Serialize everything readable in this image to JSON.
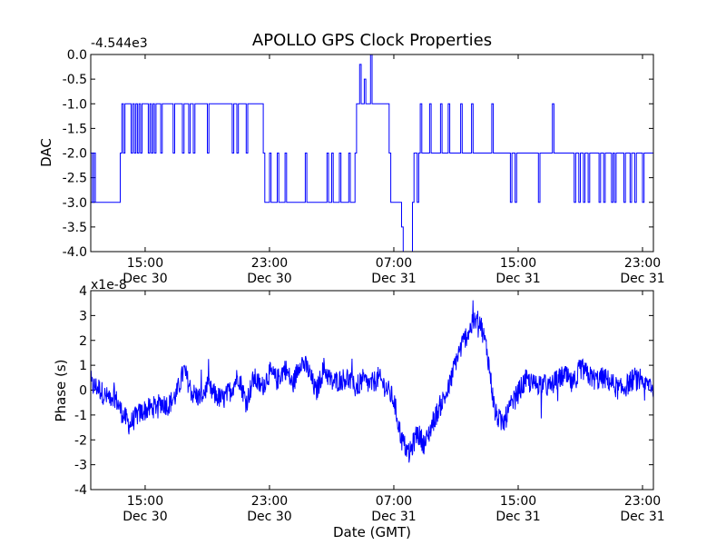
{
  "figure": {
    "title": "APOLLO GPS Clock Properties"
  },
  "chart_data": [
    {
      "type": "line",
      "ylabel": "DAC",
      "offset_label": "-4.544e3",
      "ylim": [
        -4.0,
        0.0
      ],
      "yticks": [
        "0.0",
        "-0.5",
        "-1.0",
        "-1.5",
        "-2.0",
        "-2.5",
        "-3.0",
        "-3.5",
        "-4.0"
      ],
      "yticks_values": [
        0.0,
        -0.5,
        -1.0,
        -1.5,
        -2.0,
        -2.5,
        -3.0,
        -3.5,
        -4.0
      ],
      "xlim_hours": [
        11.5,
        47.7
      ],
      "xticks": [
        {
          "hour": 15,
          "time": "15:00",
          "date": "Dec 30"
        },
        {
          "hour": 23,
          "time": "23:00",
          "date": "Dec 30"
        },
        {
          "hour": 31,
          "time": "07:00",
          "date": "Dec 31"
        },
        {
          "hour": 39,
          "time": "15:00",
          "date": "Dec 31"
        },
        {
          "hour": 47,
          "time": "23:00",
          "date": "Dec 31"
        }
      ],
      "series": [
        {
          "color": "#0000ff",
          "x": [
            11.5,
            11.6,
            11.7,
            11.8,
            13.4,
            13.5,
            13.6,
            13.7,
            14.1,
            14.2,
            14.3,
            14.4,
            14.5,
            14.6,
            14.7,
            14.8,
            15.2,
            15.3,
            15.4,
            15.5,
            15.6,
            15.7,
            16.0,
            16.1,
            16.8,
            16.9,
            17.4,
            17.5,
            17.8,
            17.9,
            18.1,
            18.2,
            19.0,
            19.1,
            20.6,
            20.7,
            20.9,
            21.0,
            21.5,
            21.6,
            22.6,
            22.7,
            23.0,
            23.1,
            23.5,
            23.6,
            24.0,
            24.1,
            25.3,
            25.4,
            26.7,
            26.8,
            27.0,
            27.1,
            27.5,
            27.6,
            28.1,
            28.2,
            28.5,
            28.6,
            28.8,
            28.9,
            29.1,
            29.2,
            29.5,
            29.6,
            30.7,
            30.8,
            31.5,
            31.6,
            32.2,
            32.3,
            32.5,
            32.6,
            32.7,
            32.8,
            33.3,
            33.4,
            34.0,
            34.1,
            34.5,
            34.6,
            35.3,
            35.4,
            36.0,
            36.1,
            37.3,
            37.4,
            38.5,
            38.6,
            38.8,
            38.9,
            40.3,
            40.4,
            41.2,
            41.3,
            42.6,
            42.7,
            42.9,
            43.0,
            43.2,
            43.3,
            43.5,
            43.6,
            44.2,
            44.3,
            44.5,
            44.6,
            45.0,
            45.1,
            45.2,
            45.3,
            45.8,
            45.9,
            46.2,
            46.3,
            46.5,
            46.6,
            47.0,
            47.1,
            47.7
          ],
          "y": [
            -2.0,
            -3.0,
            -2.0,
            -3.0,
            -2.0,
            -1.0,
            -2.0,
            -1.0,
            -2.0,
            -1.0,
            -2.0,
            -1.0,
            -2.0,
            -1.0,
            -2.0,
            -1.0,
            -2.0,
            -1.0,
            -2.0,
            -1.0,
            -2.0,
            -1.0,
            -2.0,
            -1.0,
            -2.0,
            -1.0,
            -2.0,
            -1.0,
            -2.0,
            -1.0,
            -2.0,
            -1.0,
            -2.0,
            -1.0,
            -2.0,
            -1.0,
            -2.0,
            -1.0,
            -2.0,
            -1.0,
            -2.0,
            -3.0,
            -2.0,
            -3.0,
            -2.0,
            -3.0,
            -2.0,
            -3.0,
            -2.0,
            -3.0,
            -2.0,
            -3.0,
            -2.0,
            -3.0,
            -2.0,
            -3.0,
            -2.0,
            -3.0,
            -2.0,
            -1.0,
            -0.2,
            -1.0,
            -0.5,
            -1.0,
            0.0,
            -1.0,
            -2.0,
            -3.0,
            -3.5,
            -4.0,
            -3.0,
            -2.0,
            -3.0,
            -2.0,
            -1.0,
            -2.0,
            -1.0,
            -2.0,
            -1.0,
            -2.0,
            -1.0,
            -2.0,
            -1.0,
            -2.0,
            -1.0,
            -2.0,
            -1.0,
            -2.0,
            -3.0,
            -2.0,
            -3.0,
            -2.0,
            -3.0,
            -2.0,
            -1.0,
            -2.0,
            -3.0,
            -2.0,
            -3.0,
            -2.0,
            -3.0,
            -2.0,
            -3.0,
            -2.0,
            -3.0,
            -2.0,
            -3.0,
            -2.0,
            -3.0,
            -2.0,
            -3.0,
            -2.0,
            -3.0,
            -2.0,
            -3.0,
            -2.0,
            -3.0,
            -2.0,
            -3.0,
            -2.0,
            -3.0
          ]
        }
      ]
    },
    {
      "type": "line",
      "ylabel": "Phase (s)",
      "offset_label": "x1e-8",
      "xlabel": "Date (GMT)",
      "ylim": [
        -4,
        4
      ],
      "yticks": [
        "4",
        "3",
        "2",
        "1",
        "0",
        "-1",
        "-2",
        "-3",
        "-4"
      ],
      "yticks_values": [
        4,
        3,
        2,
        1,
        0,
        -1,
        -2,
        -3,
        -4
      ],
      "xlim_hours": [
        11.5,
        47.7
      ],
      "xticks": [
        {
          "hour": 15,
          "time": "15:00",
          "date": "Dec 30"
        },
        {
          "hour": 23,
          "time": "23:00",
          "date": "Dec 30"
        },
        {
          "hour": 31,
          "time": "07:00",
          "date": "Dec 31"
        },
        {
          "hour": 39,
          "time": "15:00",
          "date": "Dec 31"
        },
        {
          "hour": 47,
          "time": "23:00",
          "date": "Dec 31"
        }
      ],
      "series": [
        {
          "color": "#0000ff",
          "x": [
            11.5,
            12.0,
            12.5,
            13.0,
            13.5,
            14.0,
            14.5,
            15.0,
            15.5,
            16.0,
            16.5,
            17.0,
            17.5,
            18.0,
            18.5,
            19.0,
            19.5,
            20.0,
            20.5,
            21.0,
            21.5,
            22.0,
            22.5,
            23.0,
            23.5,
            24.0,
            24.5,
            25.0,
            25.5,
            26.0,
            26.5,
            27.0,
            27.5,
            28.0,
            28.5,
            29.0,
            29.5,
            30.0,
            30.5,
            31.0,
            31.5,
            32.0,
            32.5,
            33.0,
            33.5,
            34.0,
            34.5,
            35.0,
            35.5,
            36.0,
            36.5,
            37.0,
            37.5,
            38.0,
            38.5,
            39.0,
            39.5,
            40.0,
            40.5,
            41.0,
            41.5,
            42.0,
            42.5,
            43.0,
            43.5,
            44.0,
            44.5,
            45.0,
            45.5,
            46.0,
            46.5,
            47.0,
            47.5,
            47.7
          ],
          "y": [
            0.2,
            0.1,
            -0.3,
            -0.2,
            -0.9,
            -1.4,
            -1.0,
            -0.8,
            -0.7,
            -0.5,
            -0.6,
            -0.2,
            0.8,
            -0.1,
            -0.3,
            0.1,
            -0.2,
            -0.4,
            0.0,
            0.6,
            -0.5,
            0.5,
            0.1,
            0.7,
            0.4,
            0.9,
            0.2,
            1.2,
            0.8,
            -0.1,
            0.9,
            0.3,
            0.4,
            0.5,
            0.1,
            0.4,
            0.2,
            0.5,
            0.1,
            -0.4,
            -2.0,
            -2.6,
            -1.7,
            -2.2,
            -1.3,
            -0.6,
            0.0,
            1.2,
            2.0,
            2.6,
            2.9,
            1.6,
            -0.9,
            -1.4,
            -0.7,
            -0.1,
            0.4,
            0.2,
            0.3,
            0.1,
            0.4,
            0.6,
            0.2,
            0.9,
            0.6,
            0.4,
            0.5,
            0.3,
            0.0,
            0.2,
            0.5,
            0.1,
            0.3,
            0.0
          ]
        }
      ]
    }
  ]
}
